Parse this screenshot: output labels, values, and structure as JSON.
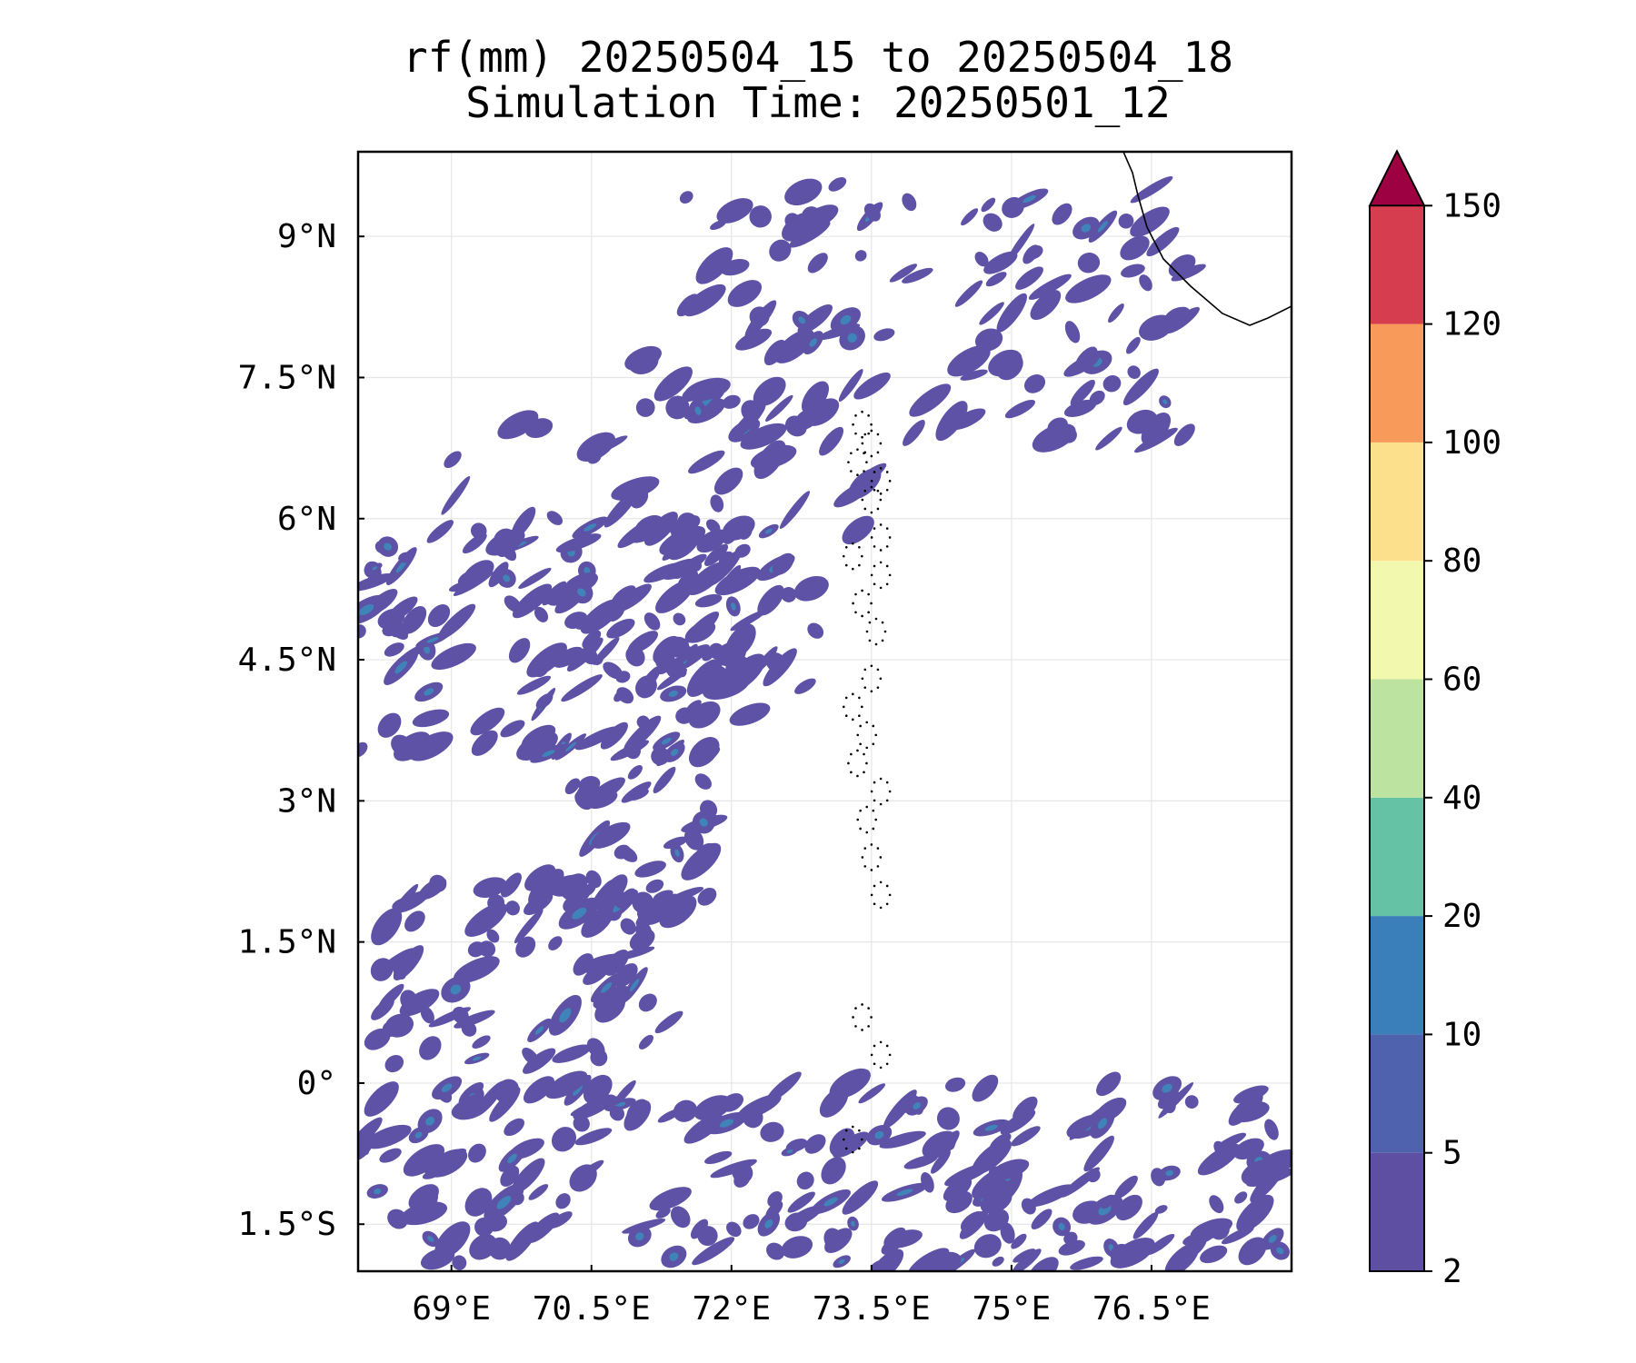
{
  "title": {
    "line1": "rf(mm) 20250504_15 to 20250504_18",
    "line2": "Simulation Time: 20250501_12"
  },
  "map": {
    "lon_range": [
      68.0,
      78.0
    ],
    "lat_range": [
      -2.0,
      9.9
    ],
    "x_ticks": [
      {
        "value": 69.0,
        "label": "69°E"
      },
      {
        "value": 70.5,
        "label": "70.5°E"
      },
      {
        "value": 72.0,
        "label": "72°E"
      },
      {
        "value": 73.5,
        "label": "73.5°E"
      },
      {
        "value": 75.0,
        "label": "75°E"
      },
      {
        "value": 76.5,
        "label": "76.5°E"
      }
    ],
    "y_ticks": [
      {
        "value": 9.0,
        "label": "9°N"
      },
      {
        "value": 7.5,
        "label": "7.5°N"
      },
      {
        "value": 6.0,
        "label": "6°N"
      },
      {
        "value": 4.5,
        "label": "4.5°N"
      },
      {
        "value": 3.0,
        "label": "3°N"
      },
      {
        "value": 1.5,
        "label": "1.5°N"
      },
      {
        "value": 0.0,
        "label": "0°"
      },
      {
        "value": -1.5,
        "label": "1.5°S"
      }
    ],
    "gridlines": true,
    "rain_color": "#5e52a6",
    "rain_color_heavy": "#3f83b8"
  },
  "colorbar": {
    "levels": [
      "2",
      "5",
      "10",
      "20",
      "40",
      "60",
      "80",
      "100",
      "120",
      "150"
    ],
    "colors": [
      "#5e4fa2",
      "#4f62ad",
      "#3a7fb9",
      "#66c2a5",
      "#bde3a1",
      "#f2f9ae",
      "#fce08b",
      "#f89a5a",
      "#d63e4f"
    ],
    "extend_color": "#9e0142",
    "extend": "max"
  }
}
